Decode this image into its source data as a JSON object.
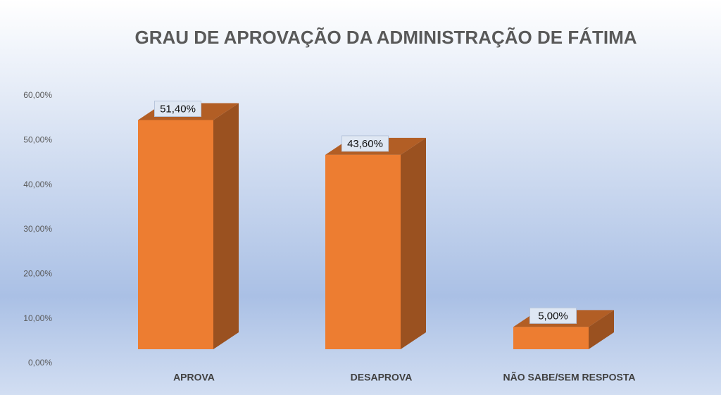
{
  "chart_data": {
    "type": "bar3d",
    "title": "GRAU DE APROVAÇÃO DA ADMINISTRAÇÃO DE FÁTIMA",
    "categories": [
      "APROVA",
      "DESAPROVA",
      "NÃO SABE/SEM RESPOSTA"
    ],
    "values": [
      51.4,
      43.6,
      5
    ],
    "value_labels": [
      "51,40%",
      "43,60%",
      "5,00%"
    ],
    "color": "#ed7d31",
    "ylim": [
      0,
      60
    ],
    "yticks": [
      {
        "value": 0,
        "label": "0,00%"
      },
      {
        "value": 10,
        "label": "10,00%"
      },
      {
        "value": 20,
        "label": "20,00%"
      },
      {
        "value": 30,
        "label": "30,00%"
      },
      {
        "value": 40,
        "label": "40,00%"
      },
      {
        "value": 50,
        "label": "50,00%"
      },
      {
        "value": 60,
        "label": "60,00%"
      }
    ]
  }
}
